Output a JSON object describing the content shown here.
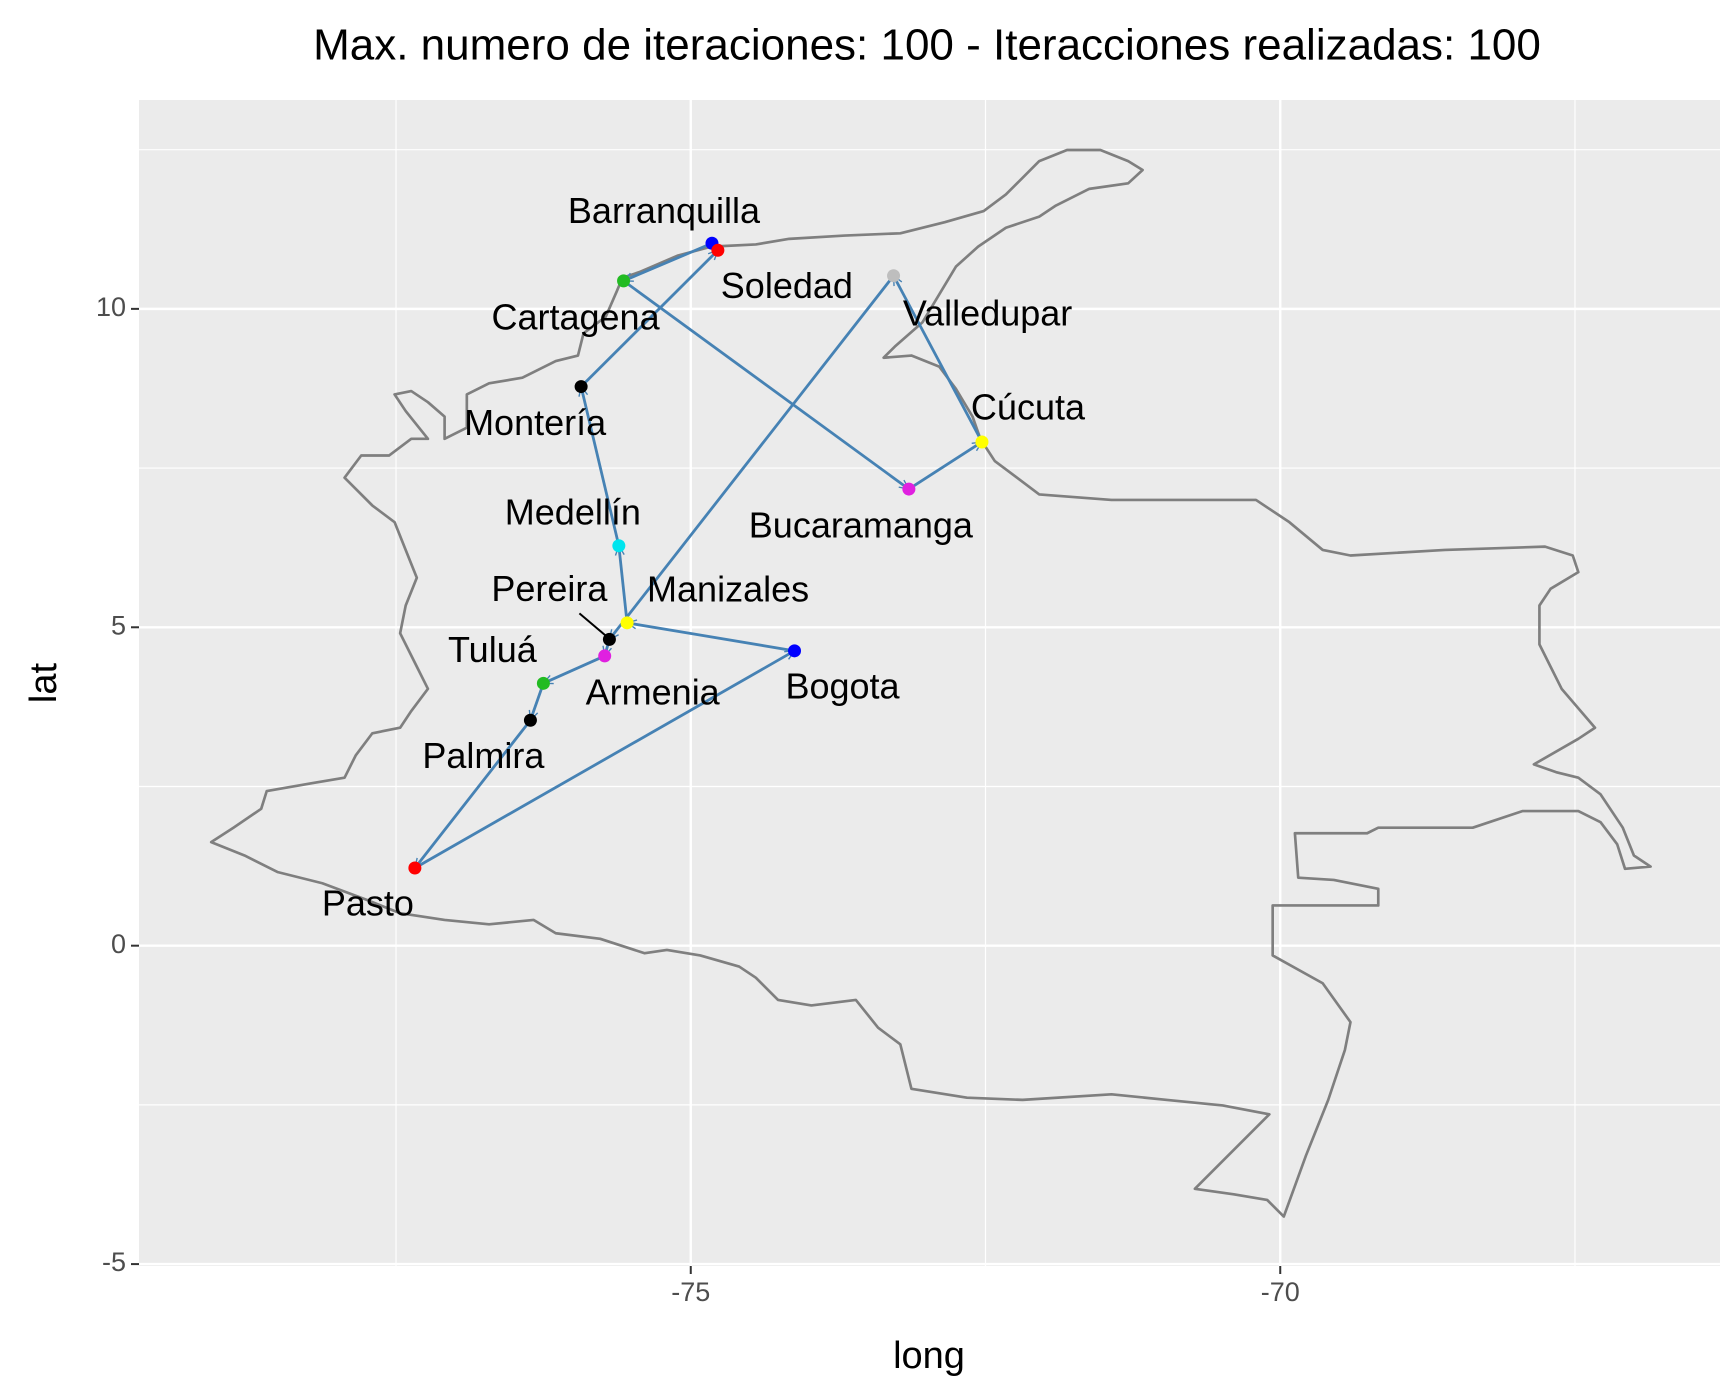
{
  "chart_data": {
    "type": "scatter",
    "title": "Max. numero de iteraciones: 100  - Iteracciones realizadas:  100",
    "x_label": "long",
    "y_label": "lat",
    "xlim": [
      -79.68,
      -66.27
    ],
    "ylim": [
      -5.03,
      13.28
    ],
    "xticks": [
      -75,
      -70
    ],
    "yticks": [
      -5,
      0,
      5,
      10
    ],
    "grid": true,
    "route_color": "#4682b4",
    "labels": [
      "Barranquilla",
      "Cartagena",
      "Bucaramanga",
      "Cúcuta",
      "Valledupar",
      "Pereira",
      "Armenia",
      "Tuluá",
      "Palmira",
      "Pasto",
      "Bogota",
      "Manizales",
      "Medellín",
      "Montería",
      "Soledad"
    ],
    "x": [
      -74.82,
      -75.57,
      -73.15,
      -72.53,
      -73.28,
      -75.69,
      -75.73,
      -76.25,
      -76.36,
      -77.34,
      -74.12,
      -75.54,
      -75.61,
      -75.93,
      -74.77
    ],
    "y": [
      11.03,
      10.44,
      7.17,
      7.91,
      10.52,
      4.81,
      4.55,
      4.12,
      3.54,
      1.22,
      4.63,
      5.07,
      6.28,
      8.78,
      10.92
    ],
    "colors": [
      "#0000ff",
      "#22bb22",
      "#e020e0",
      "#ffff00",
      "#bebebe",
      "#000000",
      "#e020e0",
      "#22bb22",
      "#000000",
      "#ff0000",
      "#0000ff",
      "#ffff00",
      "#00e5ee",
      "#000000",
      "#ff0000"
    ]
  }
}
